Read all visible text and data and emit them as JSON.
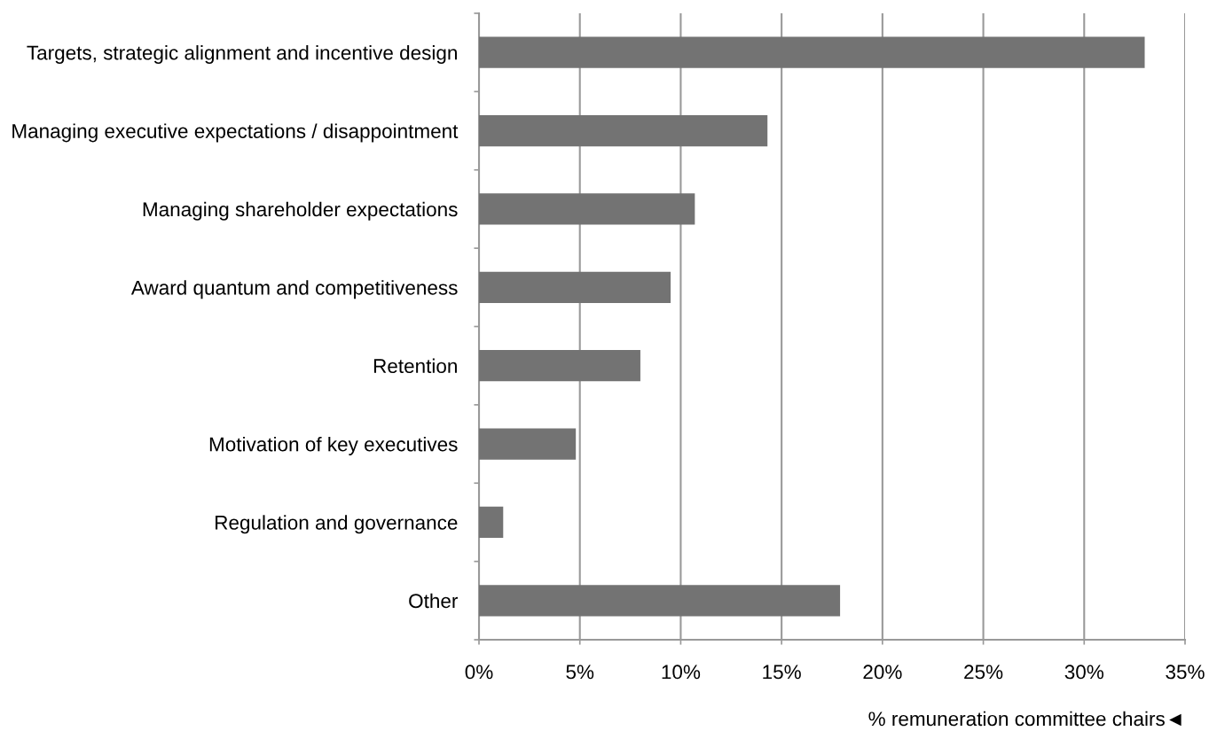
{
  "chart_data": {
    "type": "bar",
    "orientation": "horizontal",
    "categories": [
      "Targets, strategic alignment and incentive design",
      "Managing executive expectations / disappointment",
      "Managing shareholder expectations",
      "Award quantum and competitiveness",
      "Retention",
      "Motivation of key executives",
      "Regulation and governance",
      "Other"
    ],
    "values": [
      33.0,
      14.3,
      10.7,
      9.5,
      8.0,
      4.8,
      1.2,
      17.9
    ],
    "color": "#737373",
    "xlabel": "% remuneration committee chairs◄",
    "xlim": [
      0,
      35
    ],
    "xticks": [
      {
        "value": 0,
        "label": "0%"
      },
      {
        "value": 5,
        "label": "5%"
      },
      {
        "value": 10,
        "label": "10%"
      },
      {
        "value": 15,
        "label": "15%"
      },
      {
        "value": 20,
        "label": "20%"
      },
      {
        "value": 25,
        "label": "25%"
      },
      {
        "value": 30,
        "label": "30%"
      },
      {
        "value": 35,
        "label": "35%"
      }
    ],
    "grid": "x"
  }
}
